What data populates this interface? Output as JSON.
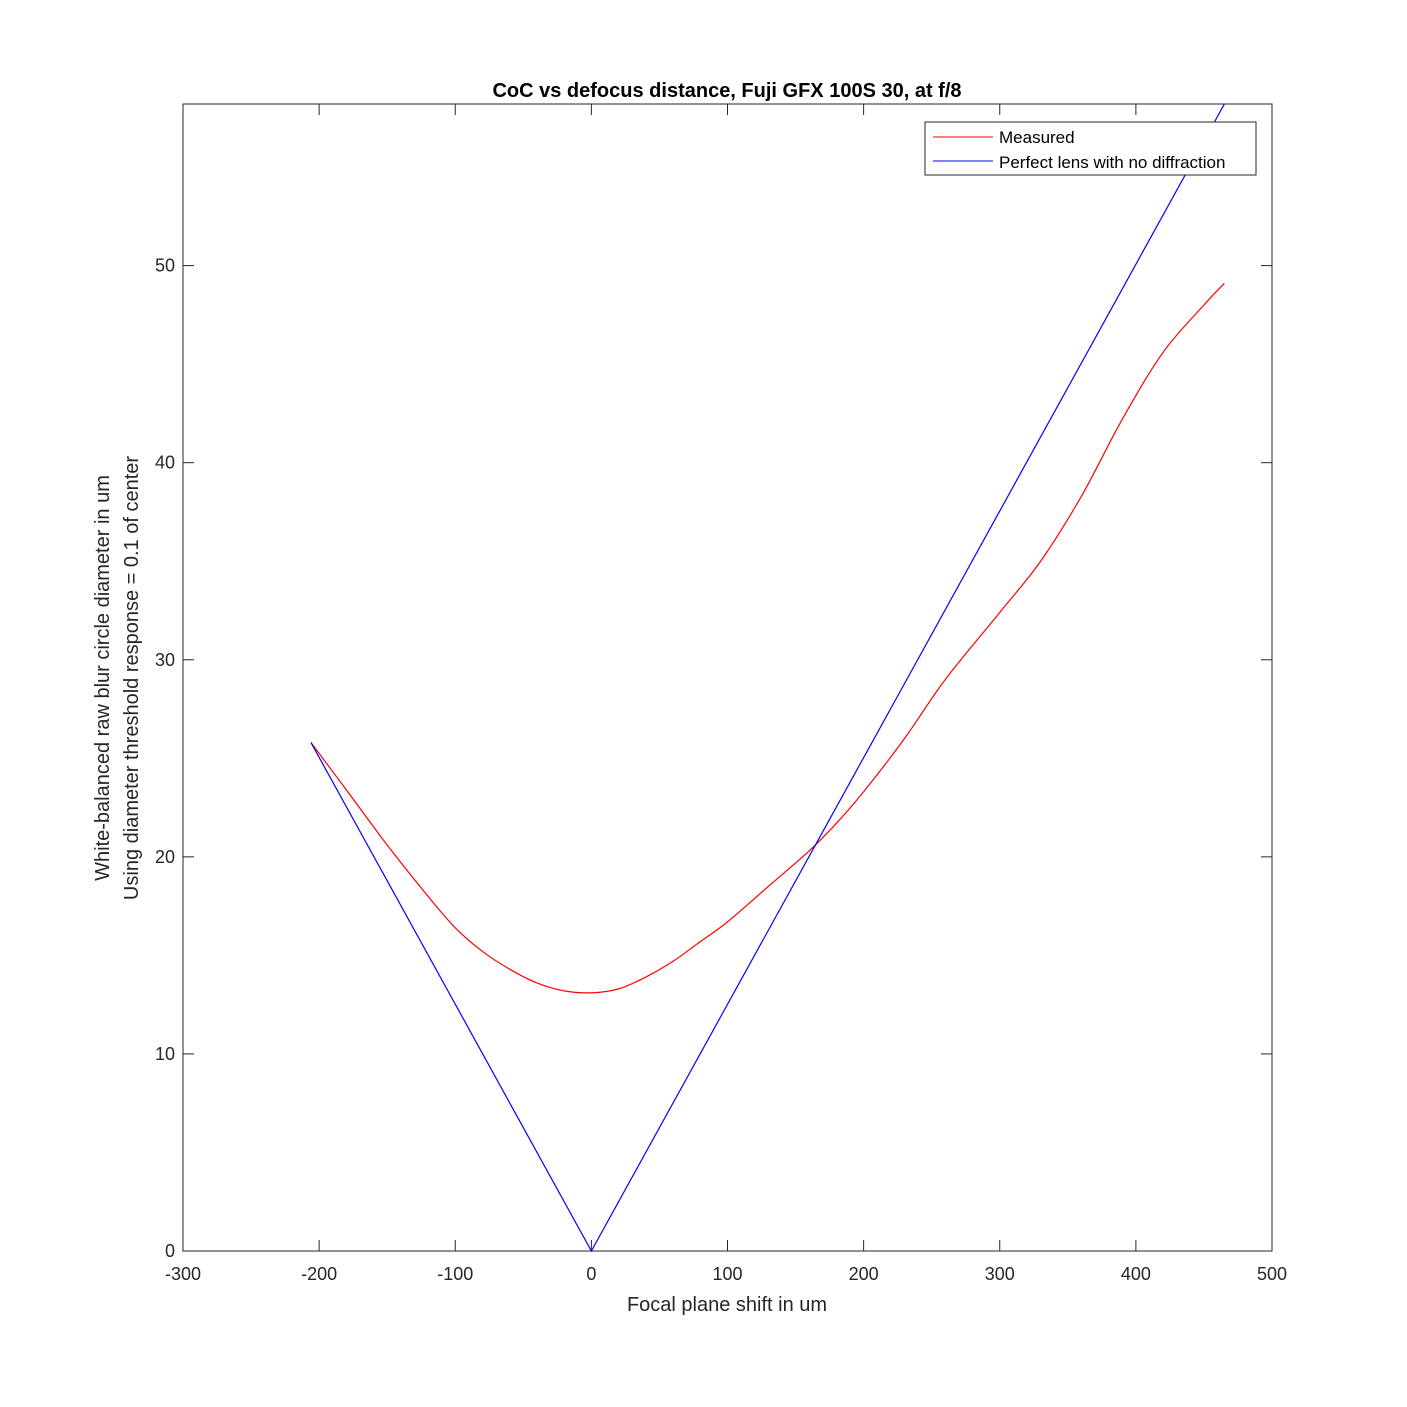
{
  "chart_data": {
    "type": "line",
    "title": "CoC vs defocus distance, Fuji GFX 100S 30, at f/8",
    "xlabel": "Focal plane shift in um",
    "ylabel": [
      "White-balanced raw blur circle diameter in um",
      "Using diameter threshold response = 0.1 of center"
    ],
    "xlim": [
      -300,
      500
    ],
    "ylim": [
      0,
      58.2
    ],
    "xticks": [
      -300,
      -200,
      -100,
      0,
      100,
      200,
      300,
      400,
      500
    ],
    "xtick_labels": [
      "-300",
      "-200",
      "-100",
      "0",
      "100",
      "200",
      "300",
      "400",
      "500"
    ],
    "yticks": [
      0,
      10,
      20,
      30,
      40,
      50
    ],
    "ytick_labels": [
      "0",
      "10",
      "20",
      "30",
      "40",
      "50"
    ],
    "grid": false,
    "legend_position": "top-right",
    "series": [
      {
        "name": "Measured",
        "color": "#ff0000",
        "x": [
          -206,
          -180,
          -150,
          -120,
          -100,
          -80,
          -60,
          -40,
          -20,
          0,
          20,
          40,
          60,
          80,
          100,
          130,
          160,
          180,
          200,
          230,
          260,
          300,
          330,
          360,
          390,
          420,
          450,
          465
        ],
        "y": [
          25.8,
          23.4,
          20.6,
          18.0,
          16.4,
          15.2,
          14.3,
          13.6,
          13.2,
          13.1,
          13.3,
          13.9,
          14.7,
          15.7,
          16.7,
          18.5,
          20.3,
          21.7,
          23.3,
          26.0,
          29.0,
          32.4,
          35.0,
          38.3,
          42.2,
          45.6,
          48.0,
          49.1
        ]
      },
      {
        "name": "Perfect lens with no diffraction",
        "color": "#0000ff",
        "x": [
          -206,
          0,
          465
        ],
        "y": [
          25.8,
          0,
          58.2
        ]
      }
    ]
  }
}
